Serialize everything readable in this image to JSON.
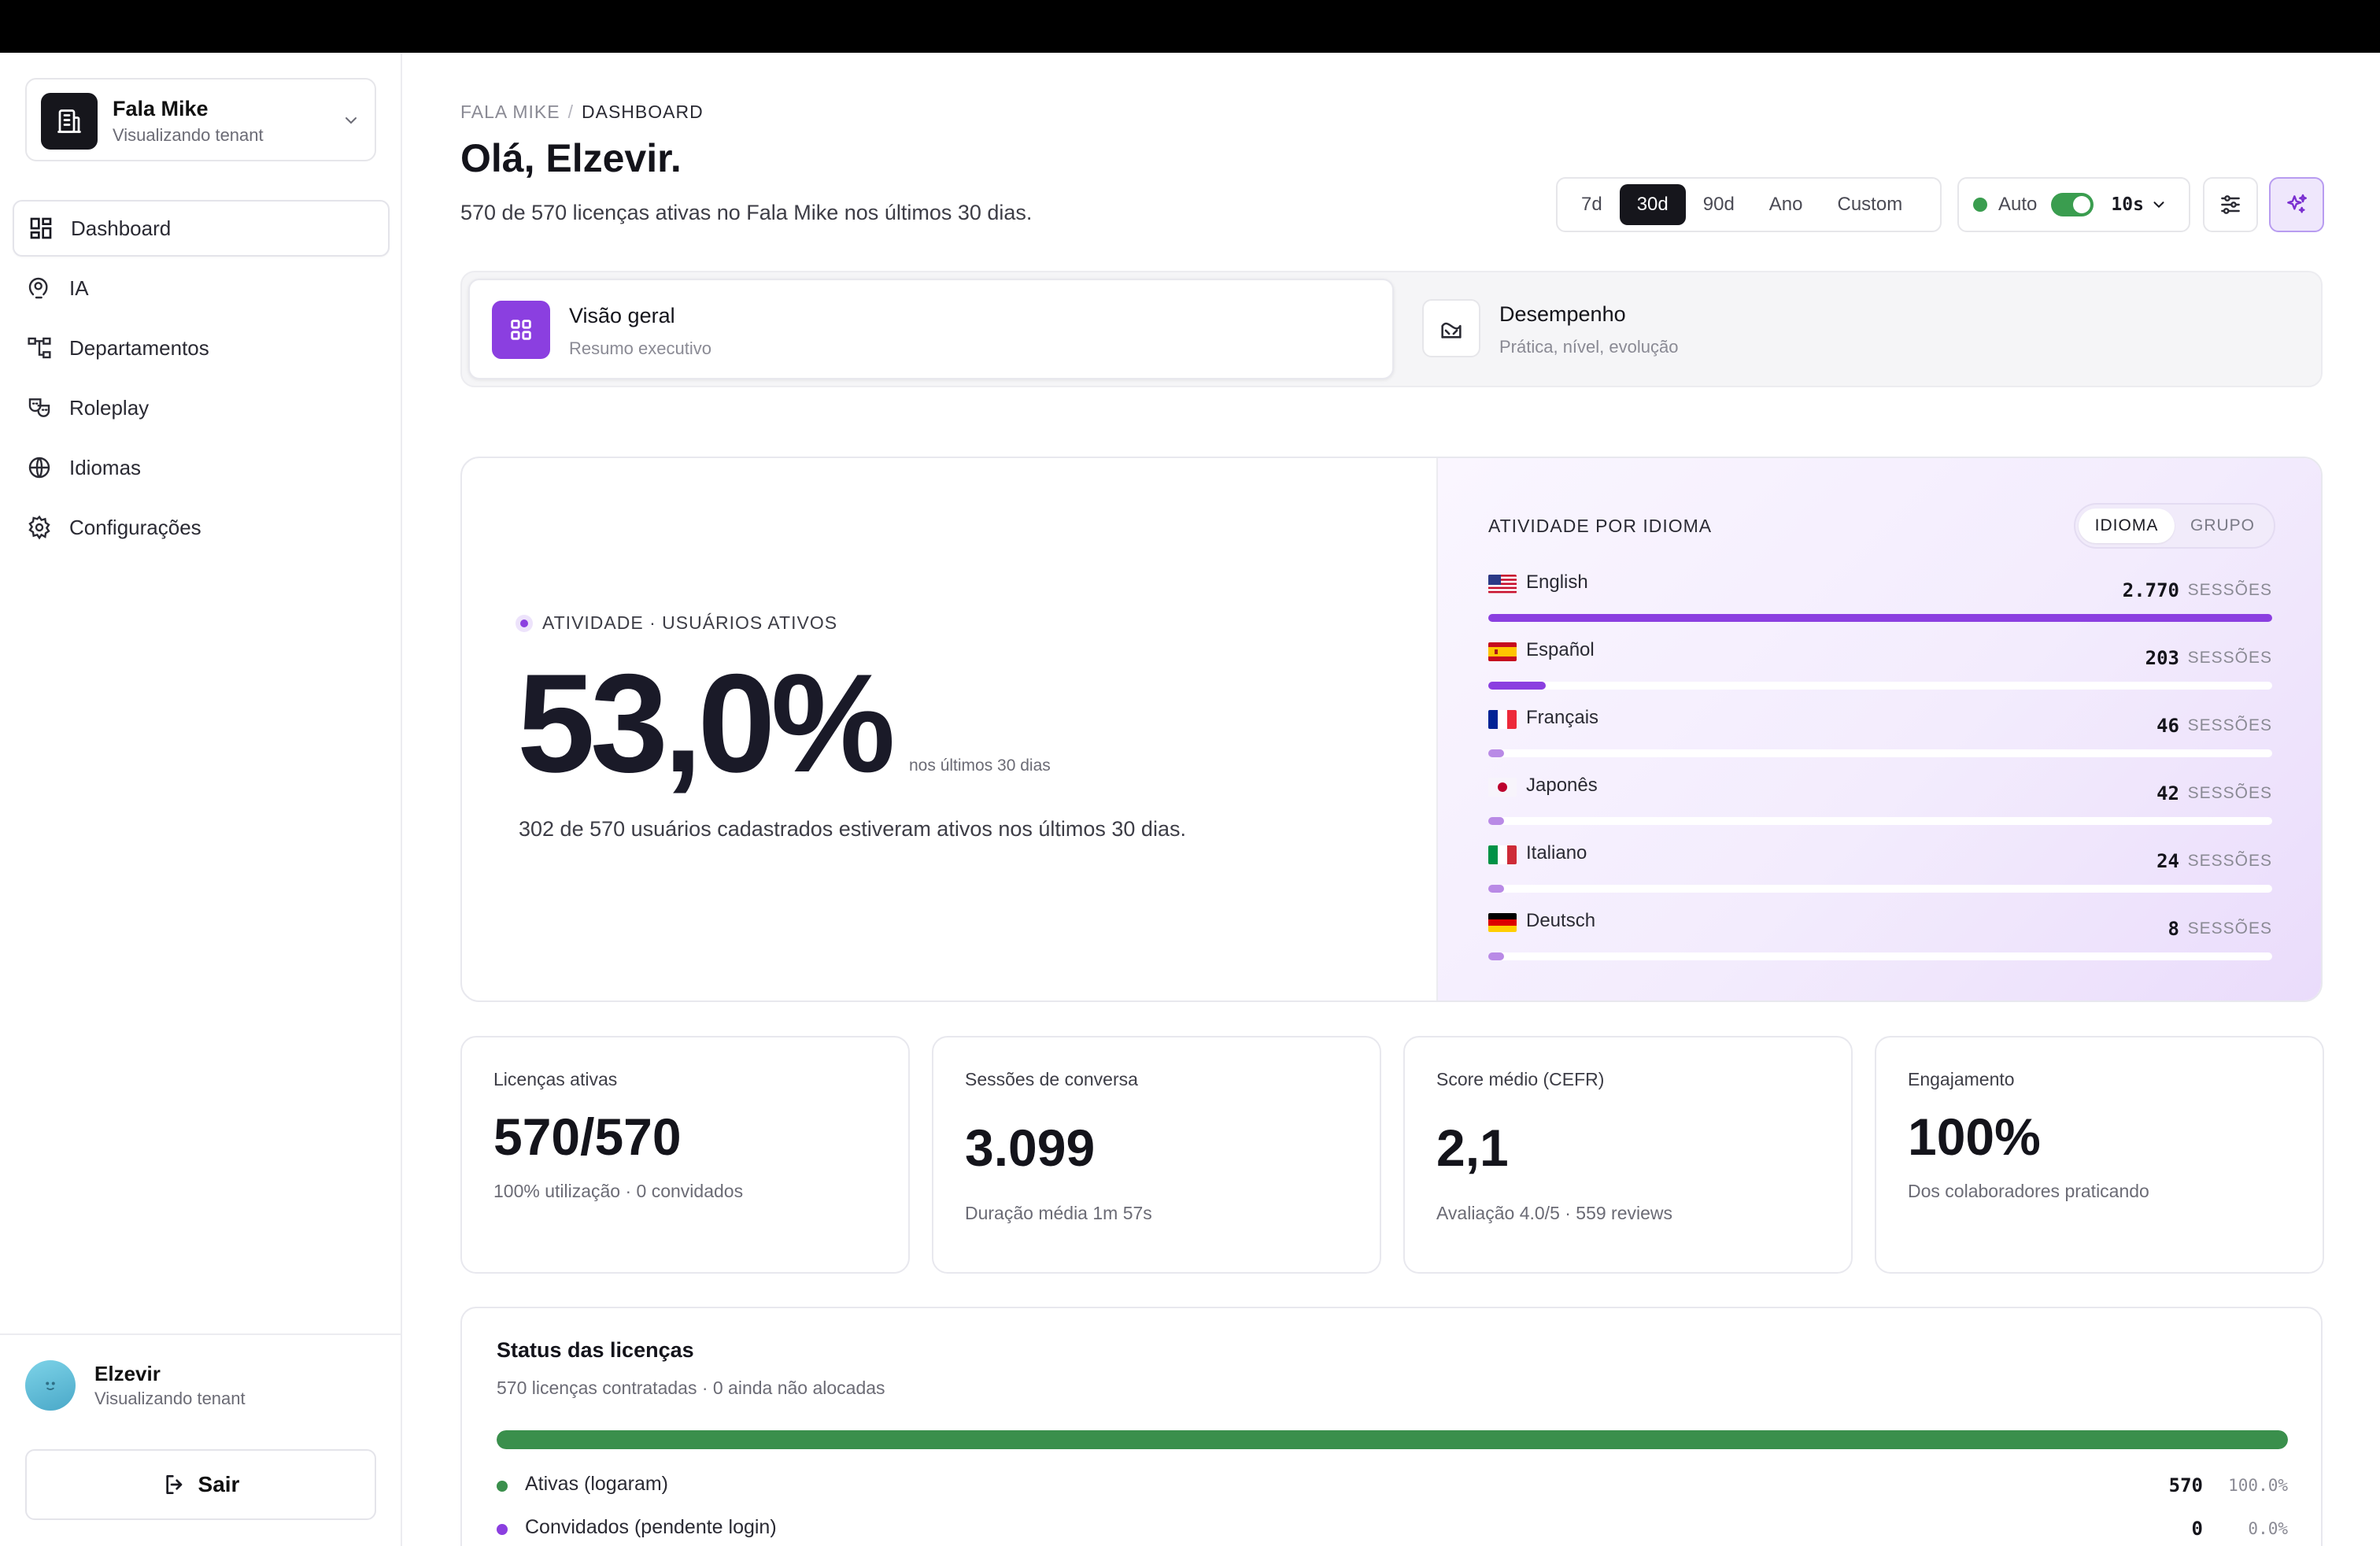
{
  "sidebar": {
    "tenant": {
      "name": "Fala Mike",
      "subtitle": "Visualizando tenant"
    },
    "nav": [
      {
        "label": "Dashboard",
        "icon": "dashboard-icon"
      },
      {
        "label": "IA",
        "icon": "ai-icon"
      },
      {
        "label": "Departamentos",
        "icon": "departments-icon"
      },
      {
        "label": "Roleplay",
        "icon": "roleplay-icon"
      },
      {
        "label": "Idiomas",
        "icon": "globe-icon"
      },
      {
        "label": "Configurações",
        "icon": "gear-icon"
      }
    ],
    "user": {
      "name": "Elzevir",
      "subtitle": "Visualizando tenant"
    },
    "logout_label": "Sair"
  },
  "header": {
    "breadcrumb": [
      "FALA MIKE",
      "DASHBOARD"
    ],
    "breadcrumb_sep": "/",
    "greeting": "Olá, Elzevir.",
    "subtitle": "570 de 570 licenças ativas no Fala Mike nos últimos 30 dias.",
    "ranges": [
      "7d",
      "30d",
      "90d",
      "Ano",
      "Custom"
    ],
    "selected_range": "30d",
    "auto_label": "Auto",
    "auto_enabled": true,
    "refresh_interval": "10s"
  },
  "tabs": [
    {
      "title": "Visão geral",
      "subtitle": "Resumo executivo",
      "icon": "grid-icon",
      "active": true
    },
    {
      "title": "Desempenho",
      "subtitle": "Prática, nível, evolução",
      "icon": "performance-icon",
      "active": false
    }
  ],
  "activity": {
    "kicker": "ATIVIDADE · USUÁRIOS ATIVOS",
    "value": "53,0%",
    "period": "nos últimos 30 dias",
    "note": "302 de 570 usuários cadastrados estiveram ativos nos últimos 30 dias."
  },
  "languages": {
    "title": "ATIVIDADE POR IDIOMA",
    "toggle": [
      "IDIOMA",
      "GRUPO"
    ],
    "selected_toggle": "IDIOMA",
    "unit": "SESSÕES",
    "rows": [
      {
        "name": "English",
        "count": "2.770",
        "sessions": 2770,
        "flag": "us-flag-icon"
      },
      {
        "name": "Español",
        "count": "203",
        "sessions": 203,
        "flag": "es-flag-icon"
      },
      {
        "name": "Français",
        "count": "46",
        "sessions": 46,
        "flag": "fr-flag-icon"
      },
      {
        "name": "Japonês",
        "count": "42",
        "sessions": 42,
        "flag": "jp-flag-icon"
      },
      {
        "name": "Italiano",
        "count": "24",
        "sessions": 24,
        "flag": "it-flag-icon"
      },
      {
        "name": "Deutsch",
        "count": "8",
        "sessions": 8,
        "flag": "de-flag-icon"
      }
    ]
  },
  "kpis": [
    {
      "label": "Licenças ativas",
      "value": "570/570",
      "desc": "100% utilização · 0 convidados"
    },
    {
      "label": "Sessões de conversa",
      "value": "3.099",
      "desc": "Duração média 1m 57s"
    },
    {
      "label": "Score médio (CEFR)",
      "value": "2,1",
      "desc": "Avaliação 4.0/5 · 559 reviews"
    },
    {
      "label": "Engajamento",
      "value": "100%",
      "desc": "Dos colaboradores praticando"
    }
  ],
  "license_status": {
    "title": "Status das licenças",
    "subtitle": "570 licenças contratadas · 0 ainda não alocadas",
    "active_fraction": 1.0,
    "rows": [
      {
        "label": "Ativas (logaram)",
        "count": "570",
        "pct": "100.0%",
        "color": "#3a8f4c"
      },
      {
        "label": "Convidados (pendente login)",
        "count": "0",
        "pct": "0.0%",
        "color": "#8b3fe0"
      }
    ]
  },
  "colors": {
    "accent": "#8b3fe0",
    "success": "#3a8f4c",
    "dark": "#16161c"
  }
}
